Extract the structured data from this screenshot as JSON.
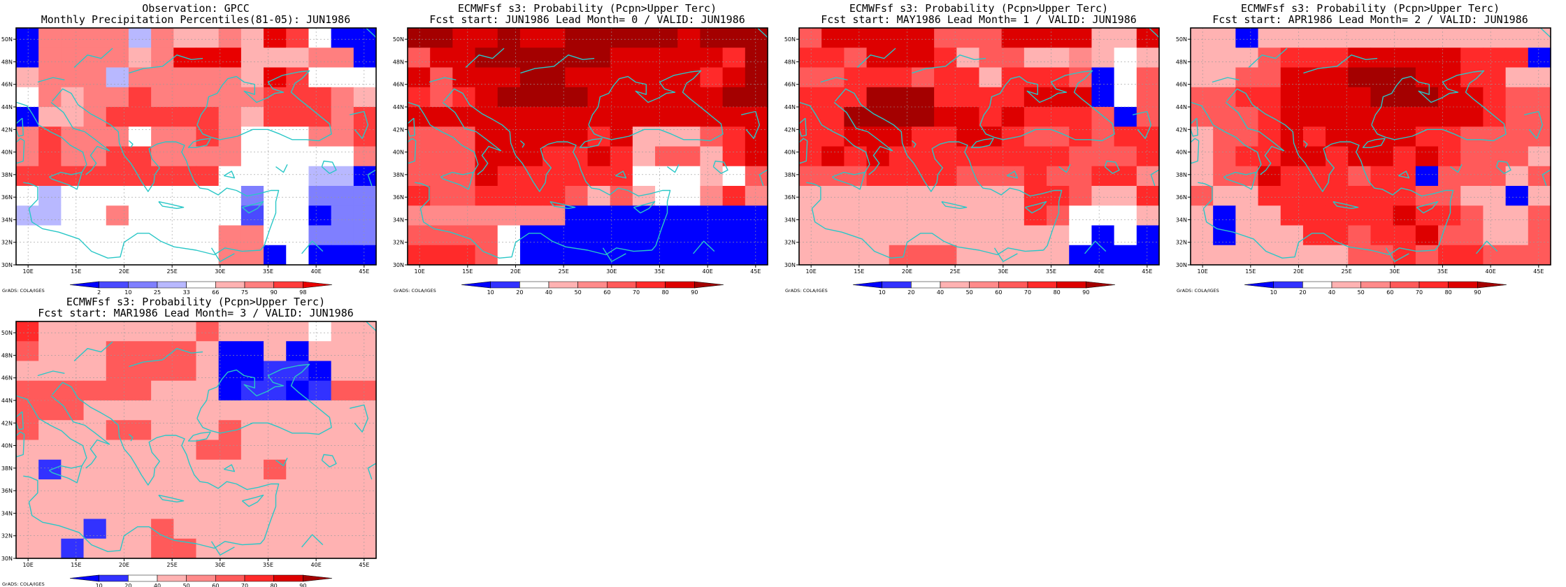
{
  "figure": {
    "credit": "GrADS: COLA/IGES",
    "lon_labels": [
      "10E",
      "15E",
      "20E",
      "25E",
      "30E",
      "35E",
      "40E",
      "45E"
    ],
    "lat_labels": [
      "30N",
      "32N",
      "34N",
      "36N",
      "38N",
      "40N",
      "42N",
      "44N",
      "46N",
      "48N",
      "50N"
    ],
    "colors": {
      "frame": "#000000",
      "coast": "#2ac7c7",
      "grid": "#9a9a9a"
    }
  },
  "colorbars": {
    "percentile": {
      "ticks": [
        "2",
        "10",
        "25",
        "33",
        "66",
        "75",
        "90",
        "98"
      ],
      "colors": [
        "#0000ff",
        "#4a4aff",
        "#7f7fff",
        "#b8b8ff",
        "#ffffff",
        "#ffb2b2",
        "#ff7f7f",
        "#ff3c3c",
        "#e80000"
      ]
    },
    "probability": {
      "ticks": [
        "10",
        "20",
        "40",
        "50",
        "60",
        "70",
        "80",
        "90"
      ],
      "colors": [
        "#0000ff",
        "#3232ff",
        "#ffffff",
        "#ffb2b2",
        "#ff8a8a",
        "#ff5a5a",
        "#ff2a2a",
        "#dd0000",
        "#a40000"
      ]
    }
  },
  "chart_data": [
    {
      "type": "heatmap",
      "title_line1": "Observation: GPCC",
      "title_line2": "Monthly Precipitation Percentiles(81-05): JUN1986",
      "scale": "percentile",
      "lon_range": [
        8.75,
        46.25
      ],
      "lat_range": [
        30.0,
        51.0
      ],
      "grid": [
        [
          0,
          6,
          6,
          6,
          6,
          3,
          6,
          5,
          5,
          6,
          5,
          8,
          7,
          4,
          0,
          0
        ],
        [
          0,
          6,
          6,
          6,
          6,
          5,
          6,
          8,
          8,
          8,
          5,
          5,
          5,
          6,
          6,
          0
        ],
        [
          5,
          6,
          6,
          6,
          3,
          6,
          6,
          6,
          6,
          6,
          5,
          8,
          7,
          4,
          4,
          4
        ],
        [
          4,
          6,
          5,
          6,
          6,
          7,
          6,
          6,
          6,
          6,
          6,
          7,
          7,
          7,
          6,
          5
        ],
        [
          0,
          5,
          5,
          6,
          7,
          7,
          7,
          7,
          7,
          6,
          5,
          7,
          7,
          7,
          6,
          7
        ],
        [
          6,
          7,
          6,
          6,
          6,
          4,
          6,
          6,
          7,
          6,
          4,
          4,
          4,
          6,
          6,
          7
        ],
        [
          6,
          7,
          6,
          6,
          7,
          7,
          6,
          6,
          6,
          6,
          4,
          4,
          4,
          4,
          4,
          6
        ],
        [
          7,
          7,
          7,
          7,
          7,
          7,
          7,
          7,
          7,
          4,
          4,
          4,
          4,
          3,
          3,
          0
        ],
        [
          4,
          3,
          4,
          4,
          4,
          4,
          4,
          4,
          4,
          4,
          2,
          4,
          4,
          2,
          2,
          2
        ],
        [
          3,
          3,
          4,
          4,
          6,
          4,
          4,
          4,
          4,
          4,
          1,
          4,
          4,
          0,
          2,
          2
        ],
        [
          4,
          4,
          4,
          4,
          4,
          4,
          4,
          4,
          4,
          6,
          6,
          4,
          4,
          2,
          2,
          2
        ],
        [
          4,
          4,
          4,
          4,
          4,
          4,
          4,
          4,
          4,
          6,
          6,
          0,
          4,
          0,
          0,
          0
        ]
      ]
    },
    {
      "type": "heatmap",
      "title_line1": "ECMWFsf s3: Probability (Pcpn>Upper Terc)",
      "title_line2": "Fcst start: JUN1986  Lead Month= 0 / VALID: JUN1986",
      "scale": "probability",
      "lon_range": [
        8.75,
        46.25
      ],
      "lat_range": [
        30.0,
        51.0
      ],
      "grid": [
        [
          8,
          8,
          7,
          7,
          8,
          7,
          7,
          8,
          8,
          8,
          8,
          8,
          7,
          8,
          8,
          8
        ],
        [
          5,
          7,
          7,
          8,
          8,
          8,
          8,
          8,
          8,
          7,
          7,
          7,
          7,
          7,
          6,
          8
        ],
        [
          7,
          5,
          7,
          7,
          7,
          8,
          8,
          7,
          7,
          7,
          7,
          7,
          7,
          6,
          7,
          8
        ],
        [
          6,
          5,
          6,
          7,
          8,
          8,
          8,
          8,
          7,
          7,
          7,
          7,
          7,
          7,
          8,
          8
        ],
        [
          7,
          7,
          7,
          7,
          7,
          7,
          7,
          7,
          7,
          7,
          7,
          7,
          7,
          7,
          7,
          7
        ],
        [
          5,
          5,
          5,
          7,
          7,
          7,
          7,
          7,
          6,
          7,
          3,
          3,
          3,
          5,
          6,
          7
        ],
        [
          5,
          5,
          5,
          7,
          7,
          7,
          6,
          6,
          7,
          6,
          3,
          5,
          5,
          3,
          6,
          7
        ],
        [
          5,
          5,
          5,
          7,
          6,
          6,
          6,
          6,
          6,
          6,
          2,
          2,
          2,
          3,
          2,
          5
        ],
        [
          6,
          5,
          5,
          6,
          6,
          6,
          6,
          5,
          3,
          5,
          3,
          2,
          2,
          4,
          6,
          4
        ],
        [
          4,
          4,
          4,
          4,
          4,
          4,
          4,
          0,
          0,
          0,
          0,
          0,
          0,
          0,
          0,
          0
        ],
        [
          5,
          5,
          5,
          5,
          2,
          0,
          0,
          0,
          0,
          0,
          0,
          0,
          0,
          0,
          0,
          0
        ],
        [
          6,
          6,
          6,
          5,
          2,
          0,
          0,
          0,
          0,
          0,
          0,
          0,
          0,
          0,
          0,
          0
        ]
      ]
    },
    {
      "type": "heatmap",
      "title_line1": "ECMWFsf s3: Probability (Pcpn>Upper Terc)",
      "title_line2": "Fcst start: MAY1986  Lead Month= 1 / VALID: JUN1986",
      "scale": "probability",
      "lon_range": [
        8.75,
        46.25
      ],
      "lat_range": [
        30.0,
        51.0
      ],
      "grid": [
        [
          5,
          7,
          7,
          7,
          7,
          7,
          5,
          5,
          5,
          7,
          7,
          7,
          7,
          3,
          3,
          7
        ],
        [
          6,
          6,
          5,
          7,
          7,
          7,
          6,
          3,
          5,
          5,
          3,
          3,
          4,
          3,
          2,
          3
        ],
        [
          5,
          5,
          6,
          6,
          6,
          5,
          6,
          6,
          3,
          6,
          6,
          6,
          5,
          0,
          2,
          5
        ],
        [
          6,
          6,
          6,
          8,
          8,
          8,
          6,
          6,
          6,
          6,
          7,
          7,
          7,
          0,
          2,
          5
        ],
        [
          6,
          6,
          8,
          8,
          8,
          8,
          7,
          7,
          6,
          7,
          6,
          6,
          6,
          5,
          0,
          5
        ],
        [
          6,
          6,
          7,
          7,
          7,
          6,
          6,
          7,
          7,
          6,
          5,
          5,
          6,
          5,
          6,
          6
        ],
        [
          6,
          7,
          6,
          7,
          6,
          6,
          6,
          6,
          6,
          6,
          6,
          6,
          5,
          5,
          5,
          6
        ],
        [
          5,
          5,
          5,
          6,
          6,
          6,
          6,
          5,
          5,
          5,
          6,
          5,
          5,
          6,
          6,
          4
        ],
        [
          3,
          3,
          3,
          3,
          3,
          3,
          3,
          3,
          3,
          3,
          6,
          6,
          5,
          3,
          3,
          6
        ],
        [
          3,
          3,
          3,
          3,
          3,
          3,
          3,
          3,
          3,
          3,
          6,
          5,
          2,
          2,
          2,
          3
        ],
        [
          3,
          3,
          3,
          3,
          3,
          3,
          3,
          3,
          3,
          3,
          3,
          3,
          2,
          0,
          2,
          0
        ],
        [
          3,
          3,
          3,
          3,
          5,
          5,
          5,
          3,
          3,
          3,
          3,
          3,
          0,
          0,
          0,
          0
        ]
      ]
    },
    {
      "type": "heatmap",
      "title_line1": "ECMWFsf s3: Probability (Pcpn>Upper Terc)",
      "title_line2": "Fcst start: APR1986  Lead Month= 2 / VALID: JUN1986",
      "scale": "probability",
      "lon_range": [
        8.75,
        46.25
      ],
      "lat_range": [
        30.0,
        51.0
      ],
      "grid": [
        [
          3,
          3,
          0,
          3,
          3,
          3,
          3,
          3,
          3,
          3,
          3,
          3,
          3,
          3,
          3,
          3
        ],
        [
          3,
          3,
          3,
          5,
          6,
          6,
          6,
          7,
          7,
          7,
          7,
          7,
          6,
          6,
          6,
          0
        ],
        [
          3,
          3,
          5,
          5,
          7,
          7,
          7,
          8,
          8,
          8,
          7,
          7,
          6,
          6,
          3,
          3
        ],
        [
          5,
          5,
          6,
          6,
          7,
          7,
          7,
          7,
          8,
          8,
          8,
          7,
          7,
          6,
          5,
          5
        ],
        [
          5,
          5,
          5,
          6,
          7,
          7,
          7,
          7,
          7,
          7,
          7,
          7,
          7,
          6,
          5,
          5
        ],
        [
          3,
          5,
          5,
          6,
          7,
          6,
          7,
          7,
          7,
          7,
          6,
          6,
          5,
          5,
          5,
          5
        ],
        [
          3,
          5,
          6,
          6,
          7,
          7,
          6,
          7,
          7,
          6,
          7,
          6,
          5,
          5,
          5,
          3
        ],
        [
          3,
          5,
          5,
          7,
          6,
          6,
          6,
          5,
          6,
          6,
          0,
          5,
          5,
          5,
          3,
          5
        ],
        [
          5,
          3,
          3,
          6,
          6,
          6,
          6,
          6,
          6,
          6,
          5,
          5,
          3,
          3,
          0,
          3
        ],
        [
          3,
          0,
          3,
          3,
          6,
          6,
          6,
          6,
          6,
          7,
          6,
          6,
          5,
          3,
          3,
          5
        ],
        [
          3,
          0,
          3,
          3,
          3,
          6,
          6,
          5,
          6,
          6,
          7,
          5,
          5,
          3,
          3,
          5
        ],
        [
          3,
          3,
          3,
          3,
          3,
          3,
          3,
          5,
          5,
          6,
          5,
          6,
          6,
          5,
          5,
          5
        ]
      ]
    },
    {
      "type": "heatmap",
      "title_line1": "ECMWFsf s3: Probability (Pcpn>Upper Terc)",
      "title_line2": "Fcst start: MAR1986  Lead Month= 3 / VALID: JUN1986",
      "scale": "probability",
      "lon_range": [
        8.75,
        46.25
      ],
      "lat_range": [
        30.0,
        51.0
      ],
      "grid": [
        [
          6,
          3,
          3,
          3,
          3,
          3,
          3,
          3,
          5,
          3,
          3,
          3,
          3,
          2,
          3,
          3
        ],
        [
          5,
          3,
          3,
          3,
          5,
          5,
          5,
          5,
          3,
          0,
          0,
          3,
          0,
          3,
          3,
          3
        ],
        [
          3,
          3,
          3,
          3,
          5,
          5,
          5,
          5,
          3,
          0,
          0,
          1,
          1,
          0,
          3,
          3
        ],
        [
          5,
          5,
          5,
          5,
          5,
          5,
          3,
          3,
          3,
          0,
          1,
          1,
          0,
          1,
          5,
          5
        ],
        [
          5,
          5,
          5,
          3,
          3,
          3,
          3,
          3,
          3,
          3,
          3,
          3,
          3,
          3,
          3,
          3
        ],
        [
          5,
          3,
          3,
          3,
          5,
          5,
          3,
          3,
          3,
          5,
          3,
          3,
          3,
          3,
          3,
          3
        ],
        [
          3,
          3,
          3,
          3,
          3,
          3,
          3,
          3,
          5,
          5,
          3,
          3,
          3,
          3,
          3,
          3
        ],
        [
          3,
          1,
          3,
          3,
          3,
          3,
          3,
          3,
          3,
          3,
          3,
          5,
          3,
          3,
          3,
          3
        ],
        [
          3,
          3,
          3,
          3,
          3,
          3,
          3,
          3,
          3,
          3,
          3,
          3,
          3,
          3,
          3,
          3
        ],
        [
          3,
          3,
          3,
          3,
          3,
          3,
          3,
          3,
          3,
          3,
          3,
          3,
          3,
          3,
          3,
          3
        ],
        [
          3,
          3,
          3,
          1,
          3,
          3,
          5,
          3,
          3,
          3,
          3,
          3,
          3,
          3,
          3,
          3
        ],
        [
          3,
          3,
          1,
          3,
          3,
          3,
          5,
          5,
          3,
          3,
          3,
          3,
          3,
          3,
          3,
          3
        ]
      ]
    }
  ]
}
